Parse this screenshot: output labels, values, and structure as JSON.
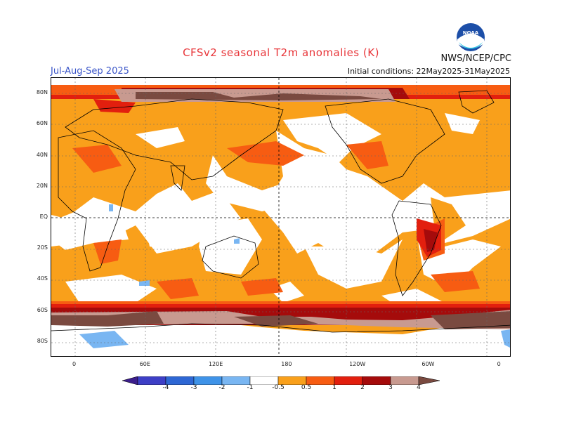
{
  "header": {
    "title": "CFSv2 seasonal T2m anomalies (K)",
    "season": "Jul-Aug-Sep 2025",
    "initial_conditions": "Initial conditions: 22May2025-31May2025",
    "agency": "NWS/NCEP/CPC",
    "logo_text": "NOAA"
  },
  "map": {
    "lat_labels": [
      "80N",
      "60N",
      "40N",
      "20N",
      "EQ",
      "20S",
      "40S",
      "60S",
      "80S"
    ],
    "lat_values": [
      80,
      60,
      40,
      20,
      0,
      -20,
      -40,
      -60,
      -80
    ],
    "lon_labels": [
      "0",
      "60E",
      "120E",
      "180",
      "120W",
      "60W",
      "0"
    ],
    "lon_values": [
      0,
      60,
      120,
      180,
      240,
      300,
      360
    ],
    "lon_range": [
      -20,
      370
    ],
    "lat_range": [
      -90,
      90
    ]
  },
  "legend": {
    "labels": [
      "-4",
      "-3",
      "-2",
      "-1",
      "-0.5",
      "0.5",
      "1",
      "2",
      "3",
      "4"
    ],
    "colors": {
      "lt_minus4": "#3c1e8c",
      "m4_m3": "#3d3fc6",
      "m3_m2": "#2e67d4",
      "m2_m1": "#3f93e8",
      "m1_m05": "#79b6f2",
      "neutral": "#ffffff",
      "p05_p1": "#f9a01b",
      "p1_p2": "#f75c12",
      "p2_p3": "#e21f0e",
      "p3_p4": "#a50b0b",
      "p4_p5": "#c89a90",
      "gt_p5": "#7a4a40"
    }
  }
}
